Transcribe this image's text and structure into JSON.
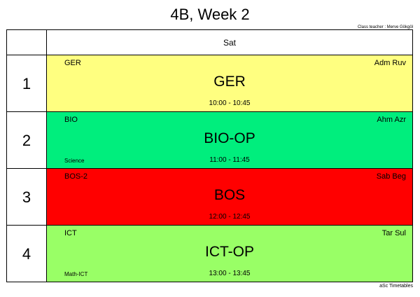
{
  "title": "4B, Week 2",
  "class_teacher": "Class teacher : Merve Gökgöl",
  "day": "Sat",
  "footer": "aSc Timetables",
  "colors": {
    "yellow": "#ffff80",
    "green": "#00ee7d",
    "red": "#ff0000",
    "lightgreen": "#99ff66"
  },
  "lessons": [
    {
      "period": "1",
      "subject_short": "GER",
      "teacher": "Adm Ruv",
      "subject_big": "GER",
      "time": "10:00 - 10:45",
      "group": "",
      "color": "#ffff80"
    },
    {
      "period": "2",
      "subject_short": "BIO",
      "teacher": "Ahm Azr",
      "subject_big": "BIO-OP",
      "time": "11:00 - 11:45",
      "group": "Science",
      "color": "#00ee7d"
    },
    {
      "period": "3",
      "subject_short": "BOS-2",
      "teacher": "Sab Beg",
      "subject_big": "BOS",
      "time": "12:00 - 12:45",
      "group": "",
      "color": "#ff0000"
    },
    {
      "period": "4",
      "subject_short": "ICT",
      "teacher": "Tar Sul",
      "subject_big": "ICT-OP",
      "time": "13:00 - 13:45",
      "group": "Math-ICT",
      "color": "#99ff66"
    }
  ]
}
